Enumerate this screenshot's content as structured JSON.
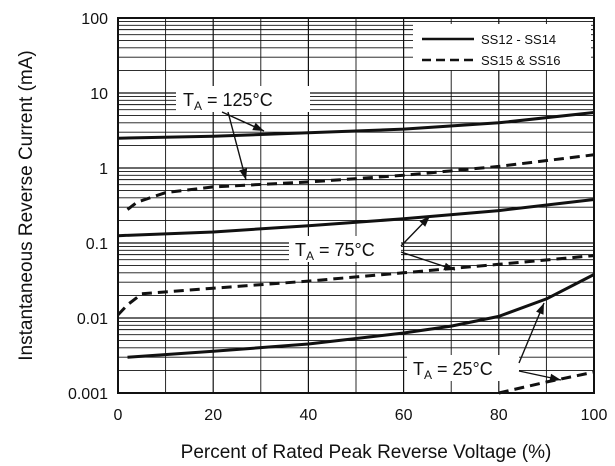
{
  "chart_data": {
    "type": "line",
    "xlabel": "Percent of Rated Peak Reverse Voltage (%)",
    "ylabel": "Instantaneous Reverse Current (mA)",
    "xlim": [
      0,
      100
    ],
    "ylim": [
      0.001,
      100
    ],
    "y_scale": "log",
    "grid": true,
    "x_ticks": [
      "0",
      "20",
      "40",
      "60",
      "80",
      "100"
    ],
    "y_ticks": [
      "0.001",
      "0.01",
      "0.1",
      "1",
      "10",
      "100"
    ],
    "legend": {
      "placement": "top-right",
      "entries": [
        {
          "label": "SS12 - SS14",
          "style": "solid"
        },
        {
          "label": "SS15 & SS16",
          "style": "dashed"
        }
      ]
    },
    "series": [
      {
        "group": "125",
        "style": "solid",
        "x": [
          0,
          20,
          40,
          60,
          80,
          100
        ],
        "y": [
          2.5,
          2.65,
          2.95,
          3.3,
          4.0,
          5.5
        ]
      },
      {
        "group": "125",
        "style": "dashed",
        "x": [
          2,
          4,
          10,
          20,
          40,
          60,
          80,
          100
        ],
        "y": [
          0.28,
          0.35,
          0.47,
          0.56,
          0.65,
          0.8,
          1.05,
          1.5
        ]
      },
      {
        "group": "75",
        "style": "solid",
        "x": [
          0,
          20,
          40,
          60,
          80,
          100
        ],
        "y": [
          0.125,
          0.14,
          0.17,
          0.21,
          0.27,
          0.38
        ]
      },
      {
        "group": "75",
        "style": "dashed",
        "x": [
          0,
          2,
          5,
          20,
          40,
          60,
          80,
          100
        ],
        "y": [
          0.011,
          0.015,
          0.021,
          0.025,
          0.031,
          0.04,
          0.052,
          0.068
        ]
      },
      {
        "group": "25",
        "style": "solid",
        "x": [
          2,
          20,
          40,
          60,
          70,
          80,
          90,
          100
        ],
        "y": [
          0.003,
          0.0036,
          0.0045,
          0.0063,
          0.0078,
          0.0105,
          0.018,
          0.038
        ]
      },
      {
        "group": "25",
        "style": "dashed",
        "x": [
          80,
          90,
          100
        ],
        "y": [
          0.001,
          0.0014,
          0.0019
        ]
      }
    ],
    "annotations": [
      {
        "text": "T",
        "sub": "A",
        "rest": " = 125°C",
        "group": "125"
      },
      {
        "text": "T",
        "sub": "A",
        "rest": " = 75°C",
        "group": "75"
      },
      {
        "text": "T",
        "sub": "A",
        "rest": " = 25°C",
        "group": "25"
      }
    ]
  }
}
